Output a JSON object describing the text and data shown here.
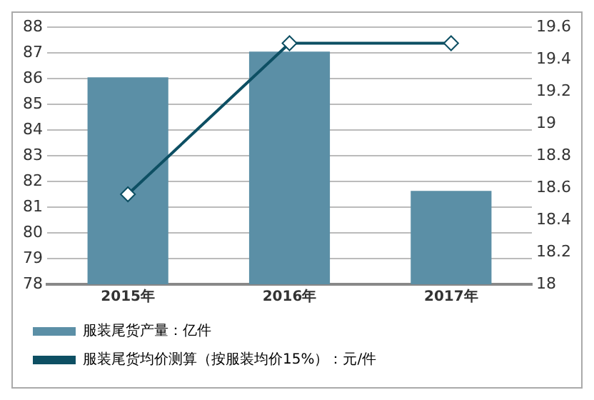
{
  "chart_data": {
    "type": "bar",
    "categories": [
      "2015年",
      "2016年",
      "2017年"
    ],
    "series": [
      {
        "name": "服装尾货产量：亿件",
        "color": "#5b8fa6",
        "values": [
          86.05,
          87.05,
          81.63
        ]
      },
      {
        "name": "服装尾货均价测算（按服装均价15%）：元/件",
        "type": "line",
        "axis": "y2",
        "color": "#0d4f63",
        "values": [
          18.56,
          19.5,
          19.5
        ]
      }
    ],
    "ylim": [
      78,
      88
    ],
    "yticks": [
      78,
      79,
      80,
      81,
      82,
      83,
      84,
      85,
      86,
      87,
      88
    ],
    "y2lim": [
      18,
      19.6
    ],
    "y2ticks": [
      18,
      18.2,
      18.4,
      18.6,
      18.8,
      19,
      19.2,
      19.4,
      19.6
    ],
    "grid": "y",
    "legend": "bottom",
    "marker": "diamond"
  }
}
